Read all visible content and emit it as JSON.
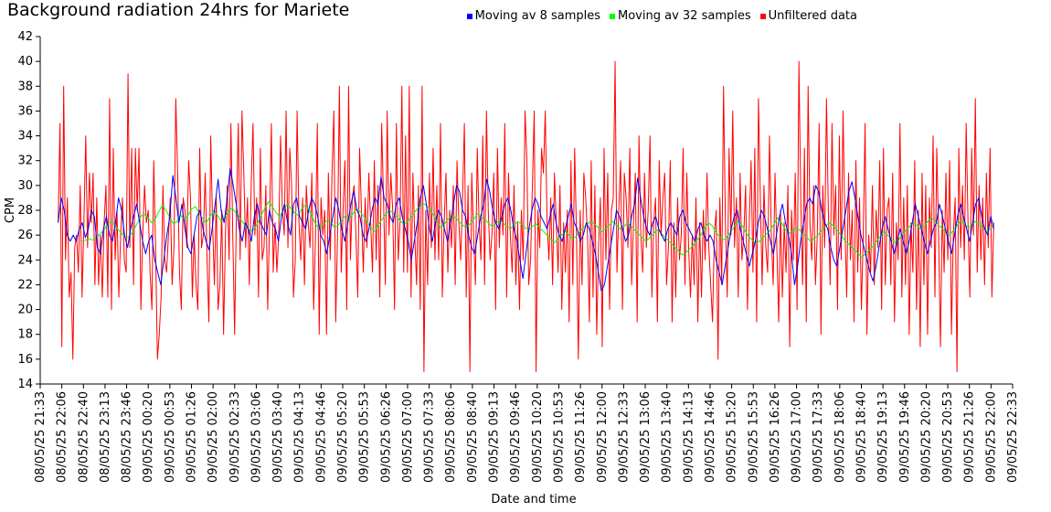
{
  "chart_data": {
    "type": "line",
    "title": "Background radiation 24hrs for Mariete",
    "xlabel": "Date and time",
    "ylabel": "CPM",
    "ylim": [
      14,
      42
    ],
    "yticks": [
      14,
      16,
      18,
      20,
      22,
      24,
      26,
      28,
      30,
      32,
      34,
      36,
      38,
      40,
      42
    ],
    "xticks": [
      "08/05/25 21:33",
      "08/05/25 22:06",
      "08/05/25 22:40",
      "08/05/25 23:13",
      "08/05/25 23:46",
      "09/05/25 00:20",
      "09/05/25 00:53",
      "09/05/25 01:26",
      "09/05/25 02:00",
      "09/05/25 02:33",
      "09/05/25 03:06",
      "09/05/25 03:40",
      "09/05/25 04:13",
      "09/05/25 04:46",
      "09/05/25 05:20",
      "09/05/25 05:53",
      "09/05/25 06:26",
      "09/05/25 07:00",
      "09/05/25 07:33",
      "09/05/25 08:06",
      "09/05/25 08:40",
      "09/05/25 09:13",
      "09/05/25 09:46",
      "09/05/25 10:20",
      "09/05/25 10:53",
      "09/05/25 11:26",
      "09/05/25 12:00",
      "09/05/25 12:33",
      "09/05/25 13:06",
      "09/05/25 13:40",
      "09/05/25 14:13",
      "09/05/25 14:46",
      "09/05/25 15:20",
      "09/05/25 15:53",
      "09/05/25 16:26",
      "09/05/25 17:00",
      "09/05/25 17:33",
      "09/05/25 18:06",
      "09/05/25 18:40",
      "09/05/25 19:13",
      "09/05/25 19:46",
      "09/05/25 20:20",
      "09/05/25 20:53",
      "09/05/25 21:26",
      "09/05/25 22:00",
      "09/05/25 22:33"
    ],
    "legend_position": "top-right",
    "grid": false,
    "series": [
      {
        "name": "Moving av 8 samples",
        "color": "#0000ff",
        "values": [
          27.0,
          29.0,
          28.0,
          26.0,
          25.5,
          26.0,
          25.5,
          26.5,
          27.0,
          25.8,
          26.5,
          28.0,
          27.5,
          25.0,
          24.5,
          26.5,
          27.5,
          26.0,
          25.5,
          27.0,
          29.0,
          28.0,
          26.0,
          25.0,
          26.5,
          27.5,
          28.5,
          27.0,
          25.5,
          24.5,
          25.5,
          26.0,
          24.0,
          23.0,
          22.0,
          24.0,
          26.0,
          27.5,
          30.8,
          29.0,
          27.0,
          28.5,
          26.5,
          25.0,
          24.5,
          26.0,
          27.5,
          28.0,
          26.5,
          25.5,
          24.8,
          26.5,
          28.5,
          30.5,
          28.0,
          27.0,
          29.0,
          31.4,
          30.0,
          28.5,
          26.5,
          25.5,
          27.0,
          26.5,
          25.5,
          27.5,
          28.5,
          27.0,
          26.5,
          26.0,
          28.0,
          27.0,
          26.5,
          25.5,
          27.5,
          28.5,
          27.0,
          26.0,
          28.5,
          29.0,
          27.5,
          27.0,
          26.5,
          28.0,
          29.0,
          28.5,
          27.5,
          26.0,
          25.5,
          24.5,
          26.0,
          27.5,
          29.0,
          28.0,
          26.5,
          25.5,
          27.0,
          28.5,
          29.5,
          28.0,
          27.5,
          26.0,
          25.5,
          26.5,
          28.0,
          29.0,
          28.5,
          30.7,
          29.0,
          28.5,
          27.5,
          27.0,
          28.5,
          29.0,
          27.5,
          26.5,
          25.5,
          24.0,
          25.5,
          27.0,
          29.0,
          30.0,
          28.5,
          26.5,
          25.5,
          27.0,
          28.0,
          27.5,
          26.5,
          25.5,
          27.0,
          28.5,
          30.0,
          29.5,
          28.0,
          27.5,
          26.0,
          25.0,
          24.5,
          26.0,
          27.5,
          28.5,
          30.5,
          29.5,
          28.0,
          27.0,
          26.5,
          27.5,
          28.5,
          29.0,
          28.0,
          26.5,
          25.5,
          24.0,
          22.5,
          24.5,
          26.5,
          28.0,
          29.0,
          28.5,
          27.5,
          27.0,
          26.5,
          27.5,
          28.5,
          27.0,
          26.0,
          25.5,
          26.5,
          27.5,
          28.5,
          27.0,
          26.5,
          25.5,
          26.0,
          27.0,
          26.5,
          25.5,
          24.5,
          23.0,
          21.5,
          22.0,
          23.5,
          25.0,
          26.5,
          28.0,
          27.5,
          26.5,
          25.5,
          26.0,
          27.5,
          28.5,
          30.6,
          29.0,
          27.5,
          26.5,
          26.0,
          27.0,
          27.5,
          26.5,
          26.0,
          25.5,
          26.5,
          27.0,
          26.5,
          26.0,
          27.5,
          28.0,
          27.0,
          26.5,
          26.0,
          25.5,
          26.5,
          27.0,
          26.0,
          25.5,
          26.0,
          25.5,
          24.0,
          23.0,
          22.0,
          23.5,
          25.0,
          26.5,
          27.5,
          28.0,
          26.5,
          25.5,
          24.5,
          23.5,
          24.5,
          25.5,
          27.0,
          28.0,
          27.5,
          26.5,
          25.5,
          24.5,
          26.0,
          27.5,
          28.5,
          27.0,
          26.0,
          24.5,
          22.0,
          23.5,
          25.5,
          27.0,
          28.5,
          29.0,
          28.5,
          30.0,
          29.5,
          28.0,
          27.0,
          26.5,
          25.0,
          24.0,
          23.5,
          25.0,
          26.5,
          28.0,
          29.5,
          30.3,
          29.0,
          27.5,
          26.0,
          25.0,
          24.0,
          23.0,
          22.3,
          23.5,
          25.0,
          26.5,
          27.5,
          26.5,
          25.5,
          24.5,
          25.5,
          26.5,
          25.5,
          24.5,
          25.5,
          27.0,
          28.5,
          27.5,
          26.5,
          25.5,
          24.5,
          25.5,
          26.5,
          27.0,
          28.5,
          27.5,
          26.5,
          25.5,
          24.5,
          26.0,
          27.5,
          28.5,
          27.5,
          26.5,
          25.5,
          27.0,
          28.5,
          29.0,
          27.5,
          26.5,
          26.0,
          27.5,
          26.5
        ]
      },
      {
        "name": "Moving av 32 samples",
        "color": "#00ff00",
        "values": [
          25.5,
          25.6,
          25.7,
          25.6,
          25.8,
          26.1,
          26.4,
          26.9,
          27.1,
          26.8,
          26.4,
          26.1,
          25.8,
          25.9,
          26.3,
          26.9,
          27.5,
          27.7,
          27.4,
          27.0,
          27.3,
          27.9,
          28.4,
          28.0,
          27.4,
          26.9,
          27.1,
          27.6,
          27.2,
          27.6,
          28.1,
          28.3,
          27.8,
          27.3,
          27.0,
          27.5,
          28.0,
          27.6,
          27.1,
          27.4,
          27.9,
          28.2,
          27.8,
          27.4,
          27.0,
          26.6,
          26.3,
          26.5,
          27.0,
          27.6,
          28.2,
          28.7,
          28.3,
          27.8,
          27.5,
          28.0,
          28.5,
          28.2,
          27.8,
          27.6,
          28.1,
          28.4,
          28.0,
          27.4,
          26.8,
          26.5,
          26.9,
          27.2,
          27.0,
          26.6,
          26.8,
          27.2,
          27.6,
          27.3,
          27.7,
          28.1,
          27.9,
          27.5,
          27.0,
          26.6,
          26.3,
          26.8,
          27.3,
          27.7,
          28.0,
          27.8,
          27.5,
          27.1,
          26.9,
          27.1,
          27.5,
          27.9,
          28.3,
          28.6,
          28.4,
          28.1,
          27.6,
          27.0,
          26.6,
          26.9,
          27.3,
          27.6,
          27.4,
          27.1,
          26.8,
          26.6,
          26.9,
          27.3,
          27.7,
          27.5,
          27.2,
          27.0,
          26.7,
          26.9,
          27.2,
          27.0,
          26.7,
          26.5,
          26.8,
          27.1,
          26.9,
          26.6,
          26.4,
          26.7,
          26.9,
          26.6,
          26.3,
          26.0,
          25.7,
          25.4,
          25.7,
          26.0,
          26.3,
          26.0,
          25.7,
          25.9,
          26.3,
          26.6,
          26.9,
          27.1,
          26.9,
          26.6,
          26.3,
          26.5,
          26.8,
          27.1,
          26.8,
          26.5,
          26.7,
          27.0,
          26.7,
          26.4,
          26.1,
          25.8,
          25.5,
          25.8,
          26.1,
          26.4,
          26.2,
          25.9,
          25.6,
          25.3,
          25.0,
          24.7,
          24.4,
          24.6,
          24.9,
          25.2,
          25.6,
          26.0,
          26.5,
          27.0,
          26.8,
          26.3,
          25.9,
          25.6,
          25.8,
          26.2,
          26.6,
          27.1,
          26.9,
          26.4,
          25.9,
          25.6,
          25.3,
          25.5,
          25.8,
          26.1,
          26.4,
          26.9,
          27.4,
          27.0,
          26.5,
          26.1,
          26.3,
          26.6,
          26.4,
          26.1,
          25.8,
          25.5,
          25.7,
          26.0,
          26.4,
          26.7,
          27.0,
          26.8,
          26.5,
          26.1,
          25.7,
          25.4,
          25.1,
          24.8,
          24.5,
          24.2,
          24.5,
          24.8,
          25.1,
          25.5,
          25.9,
          26.3,
          26.0,
          25.7,
          25.4,
          25.6,
          26.0,
          26.4,
          26.7,
          27.0,
          26.8,
          26.5,
          26.7,
          27.1,
          27.4,
          27.1,
          26.8,
          26.5,
          26.2,
          26.0,
          26.4,
          26.8,
          27.2,
          26.9,
          26.6,
          26.8,
          27.1,
          26.9,
          26.6,
          26.3,
          26.5,
          26.8
        ]
      },
      {
        "name": "Unfiltered data",
        "color": "#ff0000",
        "values": [
          27,
          35,
          17,
          38,
          24,
          29,
          21,
          23,
          16,
          25,
          26,
          23,
          30,
          21,
          27,
          34,
          25,
          31,
          27,
          31,
          22,
          29,
          22,
          26,
          21,
          27,
          30,
          21,
          37,
          20,
          33,
          24,
          28,
          21,
          26,
          29,
          24,
          23,
          39,
          25,
          33,
          22,
          33,
          28,
          33,
          20,
          26,
          30,
          27,
          28,
          23,
          20,
          32,
          25,
          16,
          18,
          21,
          30,
          24,
          23,
          26,
          29,
          22,
          25,
          37,
          31,
          23,
          20,
          29,
          28,
          25,
          32,
          29,
          21,
          26,
          22,
          20,
          33,
          25,
          26,
          31,
          24,
          19,
          34,
          27,
          22,
          29,
          20,
          22,
          28,
          18,
          26,
          30,
          24,
          35,
          26,
          18,
          28,
          35,
          24,
          36,
          31,
          25,
          29,
          22,
          30,
          35,
          26,
          29,
          21,
          33,
          24,
          25,
          30,
          20,
          27,
          35,
          23,
          27,
          23,
          26,
          34,
          28,
          26,
          36,
          25,
          33,
          30,
          21,
          24,
          36,
          27,
          24,
          29,
          22,
          30,
          27,
          25,
          31,
          20,
          26,
          35,
          18,
          29,
          26,
          28,
          18,
          31,
          24,
          31,
          36,
          19,
          26,
          38,
          23,
          28,
          32,
          20,
          38,
          24,
          29,
          30,
          26,
          21,
          33,
          28,
          23,
          29,
          25,
          31,
          27,
          23,
          32,
          24,
          30,
          21,
          35,
          29,
          22,
          36,
          26,
          31,
          28,
          20,
          35,
          24,
          27,
          38,
          23,
          34,
          23,
          38,
          21,
          31,
          26,
          22,
          30,
          20,
          38,
          15,
          28,
          22,
          31,
          25,
          33,
          24,
          30,
          24,
          35,
          21,
          27,
          31,
          23,
          28,
          25,
          30,
          22,
          32,
          27,
          24,
          29,
          35,
          21,
          30,
          15,
          31,
          26,
          22,
          33,
          27,
          24,
          34,
          22,
          36,
          28,
          24,
          26,
          31,
          20,
          33,
          25,
          29,
          26,
          35,
          21,
          31,
          26,
          23,
          30,
          22,
          27,
          20,
          28,
          24,
          36,
          32,
          22,
          24,
          30,
          36,
          15,
          28,
          25,
          33,
          31,
          36,
          27,
          24,
          29,
          22,
          31,
          27,
          23,
          30,
          20,
          27,
          23,
          28,
          19,
          32,
          22,
          33,
          26,
          16,
          28,
          22,
          31,
          29,
          26,
          19,
          32,
          21,
          30,
          18,
          25,
          29,
          17,
          33,
          24,
          31,
          20,
          28,
          29,
          40,
          23,
          28,
          32,
          20,
          31,
          29,
          25,
          33,
          22,
          27,
          31,
          19,
          34,
          26,
          23,
          31,
          25,
          28,
          34,
          21,
          27,
          29,
          19,
          32,
          26,
          29,
          31,
          22,
          25,
          32,
          19,
          27,
          21,
          29,
          24,
          26,
          33,
          22,
          31,
          25,
          21,
          26,
          22,
          29,
          19,
          27,
          21,
          28,
          24,
          31,
          25,
          22,
          19,
          26,
          28,
          16,
          29,
          22,
          38,
          27,
          21,
          33,
          26,
          36,
          25,
          29,
          21,
          31,
          24,
          26,
          30,
          20,
          27,
          32,
          23,
          33,
          19,
          37,
          29,
          22,
          30,
          25,
          23,
          34,
          26,
          22,
          31,
          25,
          19,
          28,
          21,
          27,
          23,
          30,
          17,
          28,
          24,
          31,
          20,
          40,
          29,
          22,
          33,
          19,
          38,
          27,
          24,
          30,
          22,
          26,
          35,
          18,
          30,
          25,
          37,
          28,
          22,
          35,
          26,
          30,
          20,
          34,
          24,
          36,
          27,
          21,
          31,
          24,
          28,
          19,
          32,
          23,
          29,
          20,
          26,
          35,
          18,
          26,
          23,
          30,
          22,
          28,
          25,
          32,
          20,
          33,
          22,
          28,
          29,
          22,
          31,
          19,
          27,
          24,
          35,
          21,
          29,
          22,
          30,
          18,
          27,
          23,
          32,
          20,
          28,
          17,
          31,
          22,
          30,
          18,
          29,
          25,
          34,
          21,
          33,
          26,
          17,
          28,
          23,
          31,
          24,
          32,
          18,
          26,
          29,
          15,
          33,
          25,
          30,
          24,
          35,
          27,
          21,
          33,
          26,
          37,
          23,
          30,
          24,
          29,
          22,
          31,
          25,
          33,
          21,
          27
        ]
      }
    ]
  }
}
